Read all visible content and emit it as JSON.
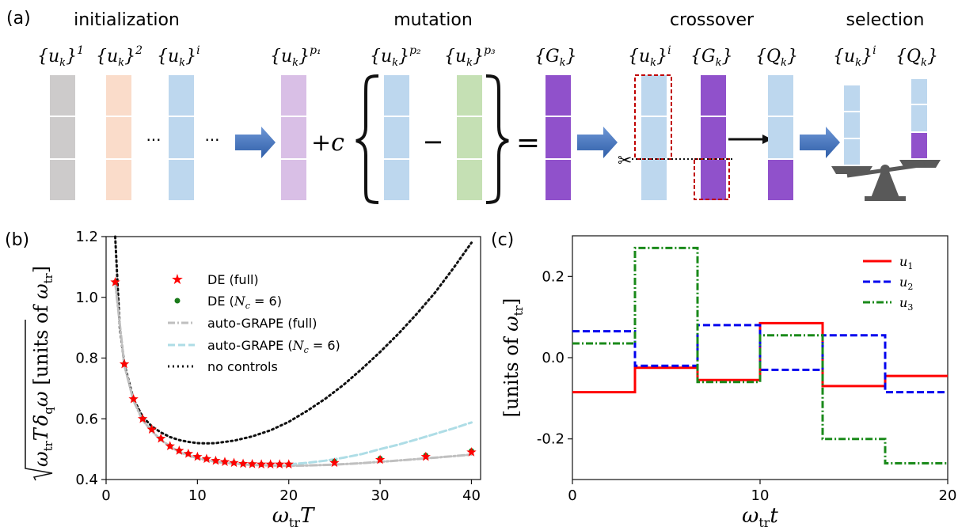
{
  "panel_a": {
    "label": "(a)",
    "stages": {
      "initialization": "initialization",
      "mutation": "mutation",
      "crossover": "crossover",
      "selection": "selection"
    },
    "formulas": {
      "uk1": "{u",
      "uk_sub": "k",
      "close": "}",
      "sup1": "1",
      "sup2": "2",
      "supi": "i",
      "supp1": "p₁",
      "supp2": "p₂",
      "supp3": "p₃",
      "Gk": "{G",
      "Qk": "{Q"
    },
    "dots": "···",
    "plus_c": "+c",
    "minus": "−",
    "equals": "=",
    "scissors": "✂",
    "colors": {
      "gray": "#cdcbcb",
      "peach": "#fadcca",
      "blue": "#bdd7ee",
      "lilac": "#d9bfe6",
      "green": "#c5e0b4",
      "purple": "#9051cb",
      "arrow": "#4472c4",
      "dashed": "#c00000"
    }
  },
  "panel_b": {
    "label": "(b)",
    "ylabel": "√(ω_tr T) δ_q ω [units of ω_tr]",
    "ylabel_parts": {
      "root": "ω",
      "tr": "tr",
      "T": "T",
      "delta": "δ",
      "q": "q",
      "omega": "ω",
      "units": "[units of ",
      "om2": "ω",
      "tr2": "tr",
      "end": "]"
    },
    "xlabel_parts": {
      "om": "ω",
      "tr": "tr",
      "T": "T"
    },
    "legend": [
      {
        "label": "DE (full)",
        "style": "star",
        "color": "#ff0000"
      },
      {
        "label": "DE (N_c = 6)",
        "label_main": "DE (",
        "label_N": "N",
        "label_c": "c",
        "label_rest": " = 6)",
        "style": "dot",
        "color": "#1a7a1a"
      },
      {
        "label": "auto-GRAPE (full)",
        "style": "dashdot",
        "color": "#bfbfbf"
      },
      {
        "label": "auto-GRAPE (N_c = 6)",
        "label_main": "auto-GRAPE (",
        "label_N": "N",
        "label_c": "c",
        "label_rest": " = 6)",
        "style": "dashed",
        "color": "#aedde6"
      },
      {
        "label": "no controls",
        "style": "dotted",
        "color": "#111111"
      }
    ]
  },
  "panel_c": {
    "label": "(c)",
    "ylabel": "[units of ω_tr]",
    "ylabel_parts": {
      "units": "[units of ",
      "om": "ω",
      "tr": "tr",
      "end": "]"
    },
    "xlabel_parts": {
      "om": "ω",
      "tr": "tr",
      "t": "t"
    },
    "legend": [
      {
        "name": "u₁",
        "base": "u",
        "sub": "1",
        "color": "#ff0000",
        "style": "solid"
      },
      {
        "name": "u₂",
        "base": "u",
        "sub": "2",
        "color": "#0000ee",
        "style": "dashed"
      },
      {
        "name": "u₃",
        "base": "u",
        "sub": "3",
        "color": "#1a8a1a",
        "style": "dashdot"
      }
    ]
  },
  "chart_data": [
    {
      "type": "line",
      "panel": "(b)",
      "xlim": [
        0,
        41
      ],
      "ylim": [
        0.4,
        1.2
      ],
      "xticks": [
        0,
        10,
        20,
        30,
        40
      ],
      "yticks": [
        0.4,
        0.6,
        0.8,
        1.0,
        1.2
      ],
      "grid": false,
      "legend_position": "top-center",
      "series": [
        {
          "name": "DE (full)",
          "mark": "star",
          "color": "#ff0000",
          "x": [
            1,
            2,
            3,
            4,
            5,
            6,
            7,
            8,
            9,
            10,
            11,
            12,
            13,
            14,
            15,
            16,
            17,
            18,
            19,
            20,
            25,
            30,
            35,
            40
          ],
          "y": [
            1.05,
            0.78,
            0.665,
            0.6,
            0.565,
            0.535,
            0.51,
            0.495,
            0.485,
            0.475,
            0.468,
            0.462,
            0.458,
            0.455,
            0.452,
            0.451,
            0.45,
            0.45,
            0.45,
            0.45,
            0.455,
            0.465,
            0.475,
            0.49
          ]
        },
        {
          "name": "DE (N_c = 6)",
          "mark": "dot",
          "color": "#1a7a1a",
          "x": [
            1,
            2,
            3,
            4,
            5,
            6,
            7,
            8,
            9,
            10,
            11,
            12,
            13,
            14,
            15,
            16,
            17,
            18,
            19,
            20,
            25,
            30,
            35,
            40
          ],
          "y": [
            1.05,
            0.78,
            0.665,
            0.6,
            0.565,
            0.535,
            0.51,
            0.495,
            0.485,
            0.475,
            0.468,
            0.462,
            0.458,
            0.455,
            0.452,
            0.451,
            0.45,
            0.45,
            0.45,
            0.45,
            0.46,
            0.47,
            0.48,
            0.495
          ]
        },
        {
          "name": "auto-GRAPE (full)",
          "mark": "dashdot",
          "color": "#bfbfbf",
          "x": [
            1,
            2,
            3,
            4,
            5,
            6,
            8,
            10,
            12,
            14,
            16,
            18,
            20,
            22,
            25,
            28,
            30,
            33,
            36,
            38,
            40
          ],
          "y": [
            1.05,
            0.775,
            0.66,
            0.595,
            0.56,
            0.53,
            0.49,
            0.47,
            0.458,
            0.452,
            0.448,
            0.446,
            0.445,
            0.446,
            0.449,
            0.454,
            0.458,
            0.465,
            0.472,
            0.477,
            0.482
          ]
        },
        {
          "name": "auto-GRAPE (N_c = 6)",
          "mark": "dashed",
          "color": "#aedde6",
          "x": [
            20,
            22,
            24,
            26,
            28,
            30,
            32,
            34,
            36,
            38,
            40
          ],
          "y": [
            0.45,
            0.455,
            0.462,
            0.472,
            0.484,
            0.5,
            0.515,
            0.532,
            0.55,
            0.568,
            0.588
          ]
        },
        {
          "name": "no controls",
          "mark": "dotted",
          "color": "#111111",
          "x": [
            1,
            1.5,
            2,
            3,
            4,
            5,
            6,
            7,
            8,
            9,
            10,
            11,
            12,
            14,
            16,
            18,
            20,
            22,
            24,
            26,
            28,
            30,
            32,
            34,
            36,
            38,
            40
          ],
          "y": [
            1.2,
            0.9,
            0.78,
            0.665,
            0.607,
            0.575,
            0.555,
            0.54,
            0.53,
            0.524,
            0.52,
            0.519,
            0.52,
            0.528,
            0.542,
            0.562,
            0.59,
            0.626,
            0.666,
            0.712,
            0.764,
            0.82,
            0.88,
            0.945,
            1.015,
            1.095,
            1.18
          ]
        }
      ]
    },
    {
      "type": "line",
      "panel": "(c)",
      "xlim": [
        0,
        20
      ],
      "ylim": [
        -0.3,
        0.3
      ],
      "xticks": [
        0,
        10,
        20
      ],
      "yticks": [
        -0.2,
        0.0,
        0.2
      ],
      "grid": false,
      "legend_position": "top-right",
      "step": true,
      "series": [
        {
          "name": "u₁",
          "color": "#ff0000",
          "style": "solid",
          "edges": [
            0,
            3.333,
            6.667,
            10,
            13.333,
            16.667,
            20
          ],
          "values": [
            -0.085,
            -0.025,
            -0.055,
            0.085,
            -0.07,
            -0.045
          ]
        },
        {
          "name": "u₂",
          "color": "#0000ee",
          "style": "dashed",
          "edges": [
            0,
            3.333,
            6.667,
            10,
            13.333,
            16.667,
            20
          ],
          "values": [
            0.065,
            -0.02,
            0.08,
            -0.03,
            0.055,
            -0.085
          ]
        },
        {
          "name": "u₃",
          "color": "#1a8a1a",
          "style": "dashdot",
          "edges": [
            0,
            3.333,
            6.667,
            10,
            13.333,
            16.667,
            20
          ],
          "values": [
            0.035,
            0.27,
            -0.06,
            0.055,
            -0.2,
            -0.26
          ]
        }
      ]
    }
  ]
}
